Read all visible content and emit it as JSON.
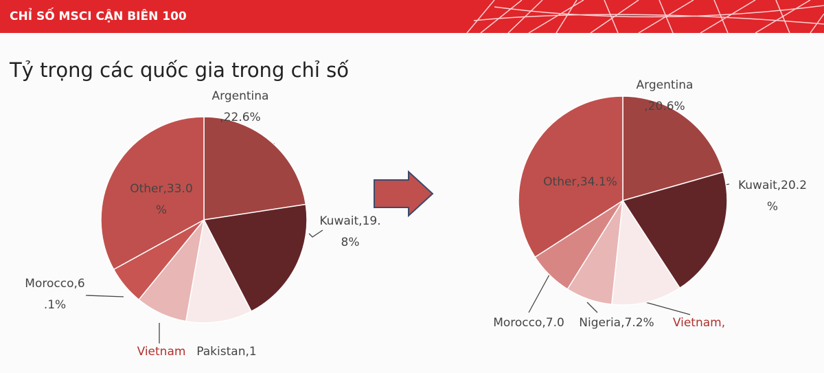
{
  "header": {
    "title": "CHỈ SỐ MSCI CẬN BIÊN 100",
    "subtitle": "Tỷ trọng các quốc gia trong chỉ số"
  },
  "chart_data": [
    {
      "type": "pie",
      "values": [
        22.6,
        19.8,
        10.4,
        8.1,
        6.1,
        33.0
      ],
      "value_labels": [
        [
          "Argentina",
          ",22.6%"
        ],
        [
          "Kuwait,19.",
          "8%"
        ],
        [
          "Pakistan,1"
        ],
        [
          "Vietnam"
        ],
        [
          "Morocco,6",
          ".1%"
        ],
        [
          "Other,33.0",
          "%"
        ]
      ],
      "colors": [
        "#a04442",
        "#622527",
        "#f8eaea",
        "#e8b6b5",
        "#c85552",
        "#c0504d"
      ]
    },
    {
      "type": "pie",
      "values": [
        20.6,
        20.2,
        10.9,
        7.2,
        7.0,
        34.1
      ],
      "value_labels": [
        [
          "Argentina",
          ",20.6%"
        ],
        [
          "Kuwait,20.2",
          "%"
        ],
        [
          "Vietnam,"
        ],
        [
          "Nigeria,7.2%"
        ],
        [
          "Morocco,7.0"
        ],
        [
          "Other,34.1%"
        ]
      ],
      "colors": [
        "#a04442",
        "#622527",
        "#f8eaea",
        "#e8b6b5",
        "#d88684",
        "#c0504d"
      ]
    }
  ]
}
